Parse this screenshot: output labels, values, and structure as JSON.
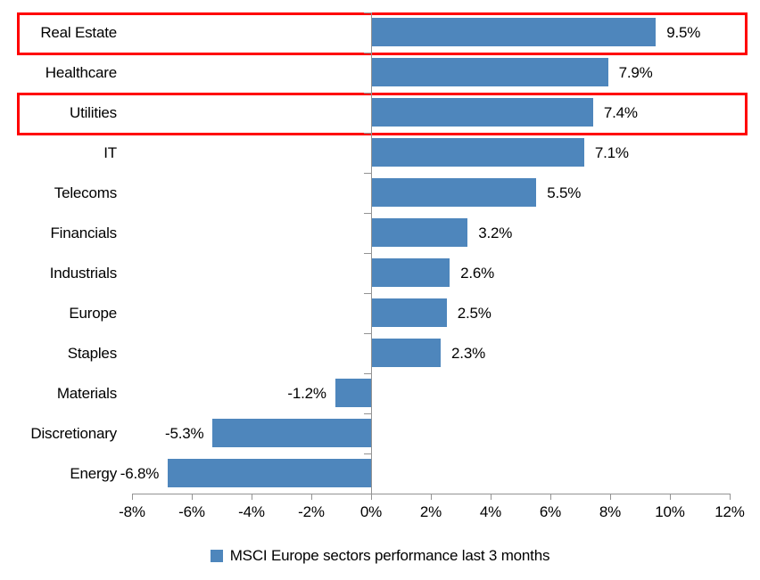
{
  "chart_data": {
    "type": "bar",
    "orientation": "horizontal",
    "title": "",
    "categories": [
      "Real Estate",
      "Healthcare",
      "Utilities",
      "IT",
      "Telecoms",
      "Financials",
      "Industrials",
      "Europe",
      "Staples",
      "Materials",
      "Discretionary",
      "Energy"
    ],
    "values": [
      9.5,
      7.9,
      7.4,
      7.1,
      5.5,
      3.2,
      2.6,
      2.5,
      2.3,
      -1.2,
      -5.3,
      -6.8
    ],
    "value_labels": [
      "9.5%",
      "7.9%",
      "7.4%",
      "7.1%",
      "5.5%",
      "3.2%",
      "2.6%",
      "2.5%",
      "2.3%",
      "-1.2%",
      "-5.3%",
      "-6.8%"
    ],
    "xlim": [
      -8,
      12
    ],
    "x_ticks": [
      "-8%",
      "-6%",
      "-4%",
      "-2%",
      "0%",
      "2%",
      "4%",
      "6%",
      "8%",
      "10%",
      "12%"
    ],
    "grid": false,
    "legend": "MSCI Europe sectors performance last 3 months",
    "legend_position": "bottom",
    "bar_color": "#4E86BC",
    "axis_color": "#939393",
    "highlight_color": "#FF0000",
    "highlighted_categories": [
      "Real Estate",
      "Utilities"
    ]
  }
}
